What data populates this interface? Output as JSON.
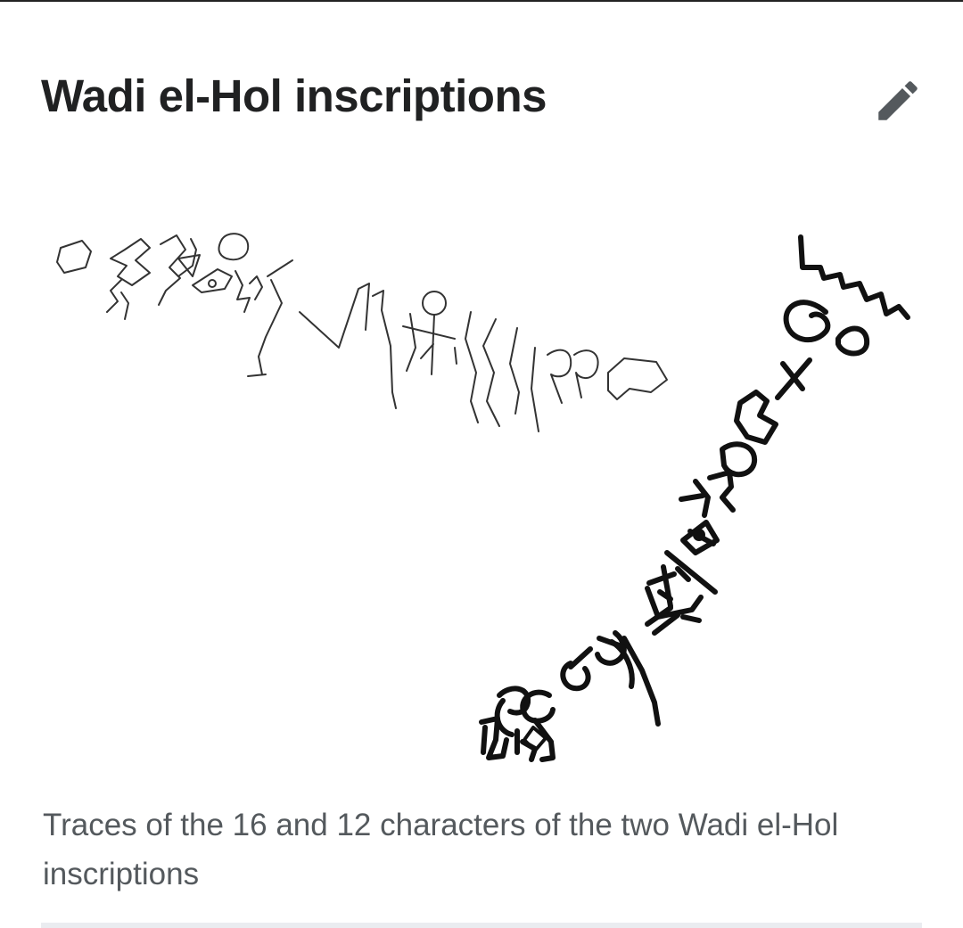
{
  "article": {
    "title": "Wadi el-Hol inscriptions",
    "edit_icon": "pencil-icon"
  },
  "figure": {
    "caption": "Traces of the 16 and 12 characters of the two Wadi el-Hol inscriptions"
  },
  "colors": {
    "title": "#202122",
    "caption": "#54595d",
    "icon": "#54595d",
    "divider": "#eaecf0"
  }
}
